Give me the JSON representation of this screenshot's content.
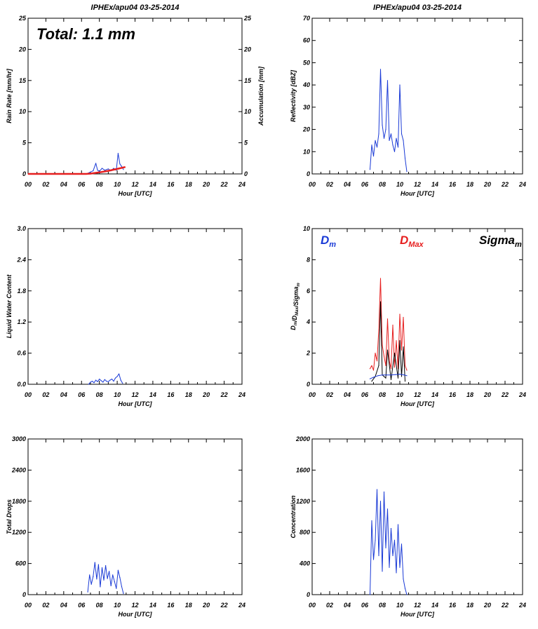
{
  "chart_data": [
    {
      "id": "rain",
      "type": "line",
      "title": "IPHEx/apu04 03-25-2014",
      "xlabel": "Hour [UTC]",
      "ylabel": "Rain Rate [mm/hr]",
      "ylabel_right": "Accumulation [mm]",
      "annotation": "Total: 1.1 mm",
      "xlim": [
        0,
        24
      ],
      "ylim": [
        0,
        25
      ],
      "xticks": [
        "00",
        "02",
        "04",
        "06",
        "08",
        "10",
        "12",
        "14",
        "16",
        "18",
        "20",
        "22",
        "24"
      ],
      "yticks": [
        "0",
        "5",
        "10",
        "15",
        "20",
        "25"
      ],
      "yticks_right": [
        "0",
        "5",
        "10",
        "15",
        "20",
        "25"
      ],
      "series": [
        {
          "color": "#1a3ad6",
          "x": [
            6.7,
            7.0,
            7.3,
            7.6,
            7.8,
            8.0,
            8.3,
            8.6,
            9.0,
            9.3,
            9.6,
            9.9,
            10.1,
            10.3,
            10.5,
            10.7
          ],
          "y": [
            0.1,
            0.3,
            0.5,
            1.7,
            0.6,
            0.4,
            0.9,
            0.6,
            0.8,
            0.5,
            0.9,
            0.6,
            3.3,
            1.6,
            1.2,
            0.7
          ]
        },
        {
          "color": "#e61e1e",
          "x": [
            0,
            6.5,
            7,
            8,
            9,
            10,
            10.9
          ],
          "y": [
            0,
            0,
            0.05,
            0.25,
            0.5,
            0.8,
            1.1
          ]
        }
      ]
    },
    {
      "id": "refl",
      "type": "line",
      "title": "IPHEx/apu04 03-25-2014",
      "xlabel": "Hour [UTC]",
      "ylabel": "Reflectivity [dBZ]",
      "xlim": [
        0,
        24
      ],
      "ylim": [
        0,
        70
      ],
      "xticks": [
        "00",
        "02",
        "04",
        "06",
        "08",
        "10",
        "12",
        "14",
        "16",
        "18",
        "20",
        "22",
        "24"
      ],
      "yticks": [
        "0",
        "10",
        "20",
        "30",
        "40",
        "50",
        "60",
        "70"
      ],
      "series": [
        {
          "color": "#1a3ad6",
          "x": [
            6.6,
            6.8,
            7.0,
            7.2,
            7.4,
            7.6,
            7.8,
            8.0,
            8.2,
            8.4,
            8.6,
            8.8,
            9.0,
            9.2,
            9.4,
            9.6,
            9.8,
            10.0,
            10.2,
            10.4,
            10.6,
            10.8
          ],
          "y": [
            2,
            13,
            8,
            15,
            12,
            18,
            47,
            22,
            16,
            20,
            42,
            15,
            18,
            13,
            10,
            16,
            12,
            40,
            18,
            15,
            7,
            1
          ]
        }
      ]
    },
    {
      "id": "lwc",
      "type": "line",
      "title": "",
      "xlabel": "Hour [UTC]",
      "ylabel": "Liquid Water Content",
      "xlim": [
        0,
        24
      ],
      "ylim": [
        0,
        3.0
      ],
      "xticks": [
        "00",
        "02",
        "04",
        "06",
        "08",
        "10",
        "12",
        "14",
        "16",
        "18",
        "20",
        "22",
        "24"
      ],
      "yticks": [
        "0.0",
        "0.6",
        "1.2",
        "1.8",
        "2.4",
        "3.0"
      ],
      "series": [
        {
          "color": "#1a3ad6",
          "x": [
            6.8,
            7.0,
            7.2,
            7.4,
            7.6,
            7.8,
            8.0,
            8.2,
            8.4,
            8.6,
            8.8,
            9.0,
            9.2,
            9.4,
            9.6,
            9.8,
            10.0,
            10.2,
            10.4,
            10.6
          ],
          "y": [
            0.0,
            0.04,
            0.06,
            0.03,
            0.08,
            0.05,
            0.1,
            0.07,
            0.04,
            0.09,
            0.06,
            0.05,
            0.08,
            0.1,
            0.06,
            0.12,
            0.15,
            0.2,
            0.08,
            0.02
          ]
        }
      ]
    },
    {
      "id": "dsd",
      "type": "line",
      "title": "",
      "xlabel": "Hour [UTC]",
      "ylabel": "D_m/D_Max/Sigma_m",
      "legend": [
        {
          "base": "D",
          "sub": "m",
          "color": "#1a3ad6"
        },
        {
          "base": "D",
          "sub": "Max",
          "color": "#e61e1e"
        },
        {
          "base": "Sigma",
          "sub": "m",
          "color": "#000000"
        }
      ],
      "xlim": [
        0,
        24
      ],
      "ylim": [
        0,
        10
      ],
      "xticks": [
        "00",
        "02",
        "04",
        "06",
        "08",
        "10",
        "12",
        "14",
        "16",
        "18",
        "20",
        "22",
        "24"
      ],
      "yticks": [
        "0",
        "2",
        "4",
        "6",
        "8",
        "10"
      ],
      "series": [
        {
          "color": "#e61e1e",
          "x": [
            6.6,
            6.8,
            7.0,
            7.2,
            7.4,
            7.6,
            7.8,
            8.0,
            8.2,
            8.4,
            8.6,
            8.8,
            9.0,
            9.2,
            9.4,
            9.6,
            9.8,
            10.0,
            10.2,
            10.4,
            10.6,
            10.8
          ],
          "y": [
            1.0,
            1.2,
            0.9,
            2.0,
            1.5,
            3.5,
            6.8,
            2.5,
            1.8,
            1.2,
            4.2,
            1.5,
            1.0,
            3.8,
            1.1,
            2.8,
            1.0,
            4.5,
            2.2,
            4.3,
            1.2,
            0.9
          ]
        },
        {
          "color": "#000000",
          "x": [
            6.8,
            7.2,
            7.6,
            7.8,
            8.0,
            8.4,
            8.6,
            9.0,
            9.4,
            9.8,
            10.0,
            10.2,
            10.4,
            10.6
          ],
          "y": [
            0.2,
            0.5,
            1.2,
            5.3,
            0.6,
            0.4,
            2.2,
            0.3,
            2.0,
            0.4,
            2.8,
            0.5,
            2.4,
            0.2
          ]
        },
        {
          "color": "#1a3ad6",
          "x": [
            6.6,
            7.0,
            7.5,
            8.0,
            8.5,
            9.0,
            9.5,
            10.0,
            10.5,
            10.8
          ],
          "y": [
            0.35,
            0.45,
            0.55,
            0.6,
            0.6,
            0.6,
            0.62,
            0.65,
            0.6,
            0.55
          ]
        }
      ]
    },
    {
      "id": "drops",
      "type": "line",
      "title": "",
      "xlabel": "Hour [UTC]",
      "ylabel": "Total Drops",
      "xlim": [
        0,
        24
      ],
      "ylim": [
        0,
        3000
      ],
      "xticks": [
        "00",
        "02",
        "04",
        "06",
        "08",
        "10",
        "12",
        "14",
        "16",
        "18",
        "20",
        "22",
        "24"
      ],
      "yticks": [
        "0",
        "600",
        "1200",
        "1800",
        "2400",
        "3000"
      ],
      "series": [
        {
          "color": "#1a3ad6",
          "x": [
            6.7,
            6.9,
            7.1,
            7.3,
            7.5,
            7.7,
            7.9,
            8.1,
            8.3,
            8.5,
            8.7,
            8.9,
            9.1,
            9.3,
            9.5,
            9.7,
            9.9,
            10.1,
            10.3,
            10.5,
            10.7
          ],
          "y": [
            50,
            380,
            200,
            350,
            620,
            300,
            580,
            150,
            520,
            280,
            560,
            310,
            450,
            170,
            380,
            250,
            120,
            470,
            330,
            160,
            20
          ]
        }
      ]
    },
    {
      "id": "conc",
      "type": "line",
      "title": "",
      "xlabel": "Hour [UTC]",
      "ylabel": "Concentration",
      "xlim": [
        0,
        24
      ],
      "ylim": [
        0,
        2000
      ],
      "xticks": [
        "00",
        "02",
        "04",
        "06",
        "08",
        "10",
        "12",
        "14",
        "16",
        "18",
        "20",
        "22",
        "24"
      ],
      "yticks": [
        "0",
        "400",
        "800",
        "1200",
        "1600",
        "2000"
      ],
      "series": [
        {
          "color": "#1a3ad6",
          "x": [
            6.6,
            6.8,
            7.0,
            7.2,
            7.4,
            7.6,
            7.8,
            8.0,
            8.2,
            8.4,
            8.6,
            8.8,
            9.0,
            9.2,
            9.4,
            9.6,
            9.8,
            10.0,
            10.2,
            10.4,
            10.6,
            10.8
          ],
          "y": [
            0,
            950,
            450,
            700,
            1350,
            500,
            1200,
            300,
            1320,
            600,
            1100,
            350,
            850,
            500,
            700,
            280,
            900,
            350,
            650,
            200,
            80,
            0
          ]
        }
      ]
    }
  ]
}
